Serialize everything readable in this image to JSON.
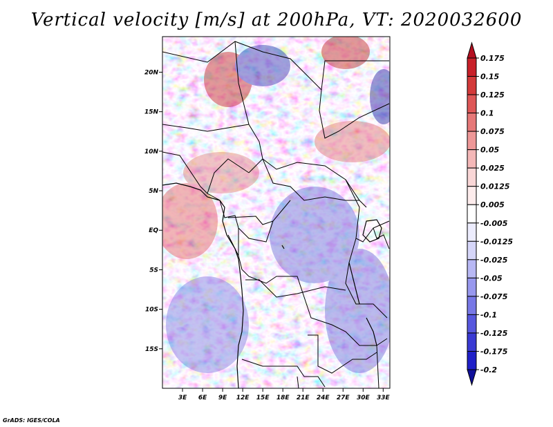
{
  "title": "Vertical velocity [m/s] at 200hPa, VT: 2020032600",
  "credit": "GrADS: IGES/COLA",
  "chart_data": {
    "type": "heatmap",
    "title": "Vertical velocity [m/s] at 200hPa, VT: 2020032600",
    "variable": "Vertical velocity",
    "units": "m/s",
    "level": "200hPa",
    "valid_time": "2020032600",
    "lon_range": [
      0,
      34
    ],
    "lat_range": [
      -20,
      24.5
    ],
    "x_ticks": [
      {
        "value": 3,
        "label": "3E"
      },
      {
        "value": 6,
        "label": "6E"
      },
      {
        "value": 9,
        "label": "9E"
      },
      {
        "value": 12,
        "label": "12E"
      },
      {
        "value": 15,
        "label": "15E"
      },
      {
        "value": 18,
        "label": "18E"
      },
      {
        "value": 21,
        "label": "21E"
      },
      {
        "value": 24,
        "label": "24E"
      },
      {
        "value": 27,
        "label": "27E"
      },
      {
        "value": 30,
        "label": "30E"
      },
      {
        "value": 33,
        "label": "33E"
      }
    ],
    "y_ticks": [
      {
        "value": 20,
        "label": "20N"
      },
      {
        "value": 15,
        "label": "15N"
      },
      {
        "value": 10,
        "label": "10N"
      },
      {
        "value": 5,
        "label": "5N"
      },
      {
        "value": 0,
        "label": "EQ"
      },
      {
        "value": -5,
        "label": "5S"
      },
      {
        "value": -10,
        "label": "10S"
      },
      {
        "value": -15,
        "label": "15S"
      }
    ],
    "colorbar": {
      "levels": [
        "0.175",
        "0.15",
        "0.125",
        "0.1",
        "0.075",
        "0.05",
        "0.025",
        "0.0125",
        "0.005",
        "-0.005",
        "-0.0125",
        "-0.025",
        "-0.05",
        "-0.075",
        "-0.1",
        "-0.125",
        "-0.175",
        "-0.2"
      ],
      "colors": [
        "#b40f20",
        "#c82029",
        "#d33a3a",
        "#de5757",
        "#e67878",
        "#ee9898",
        "#f4b8b8",
        "#f9d6d6",
        "#fdecec",
        "#ffffff",
        "#ececfd",
        "#d6d6f9",
        "#b8b8f4",
        "#9898ee",
        "#7878e6",
        "#5757de",
        "#3a3ad3",
        "#2020c8",
        "#10109a"
      ]
    }
  }
}
